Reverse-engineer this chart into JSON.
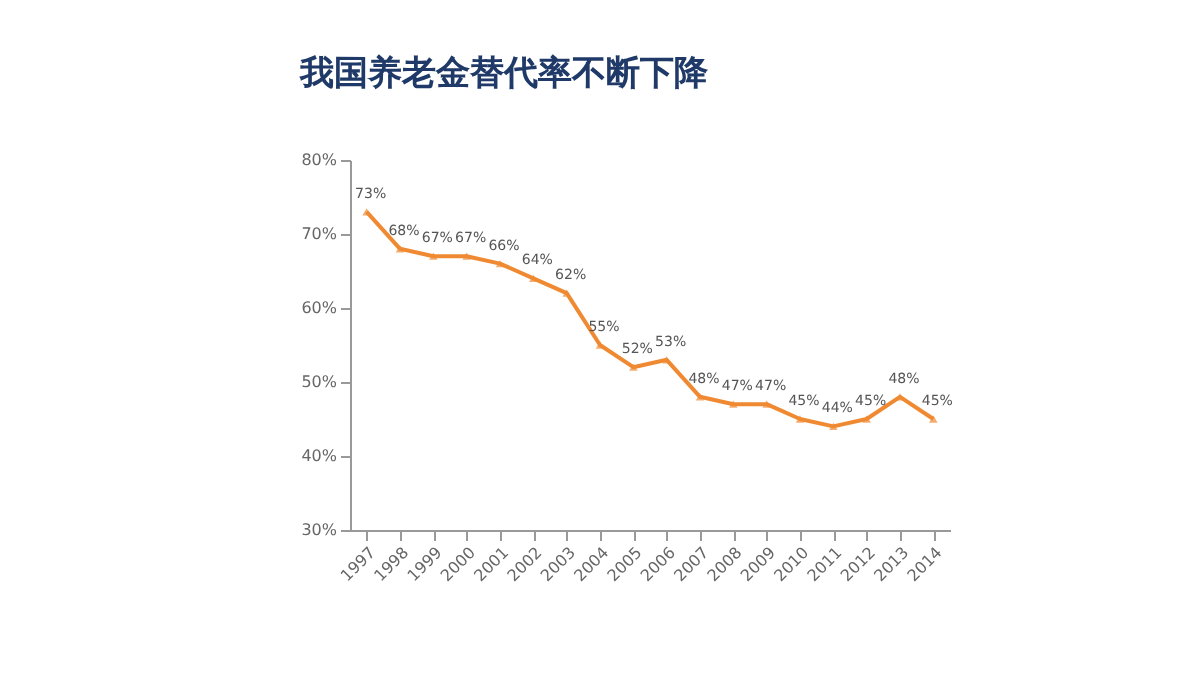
{
  "chart_data": {
    "type": "line",
    "title": "我国养老金替代率不断下降",
    "categories": [
      "1997",
      "1998",
      "1999",
      "2000",
      "2001",
      "2002",
      "2003",
      "2004",
      "2005",
      "2006",
      "2007",
      "2008",
      "2009",
      "2010",
      "2011",
      "2012",
      "2013",
      "2014"
    ],
    "series": [
      {
        "color": "#f08a32",
        "values": [
          73,
          68,
          67,
          67,
          66,
          64,
          62,
          55,
          52,
          53,
          48,
          47,
          47,
          45,
          44,
          45,
          48,
          45
        ],
        "value_labels": [
          "73%",
          "68%",
          "67%",
          "67%",
          "66%",
          "64%",
          "62%",
          "55%",
          "52%",
          "53%",
          "48%",
          "47%",
          "47%",
          "45%",
          "44%",
          "45%",
          "48%",
          "45%"
        ]
      }
    ],
    "ylim": [
      30,
      80
    ],
    "yticks": [
      {
        "value": 30,
        "label": "30%"
      },
      {
        "value": 40,
        "label": "40%"
      },
      {
        "value": 50,
        "label": "50%"
      },
      {
        "value": 60,
        "label": "60%"
      },
      {
        "value": 70,
        "label": "70%"
      },
      {
        "value": 80,
        "label": "80%"
      }
    ],
    "marker": "triangle",
    "line_style": "solid",
    "grid": false
  }
}
